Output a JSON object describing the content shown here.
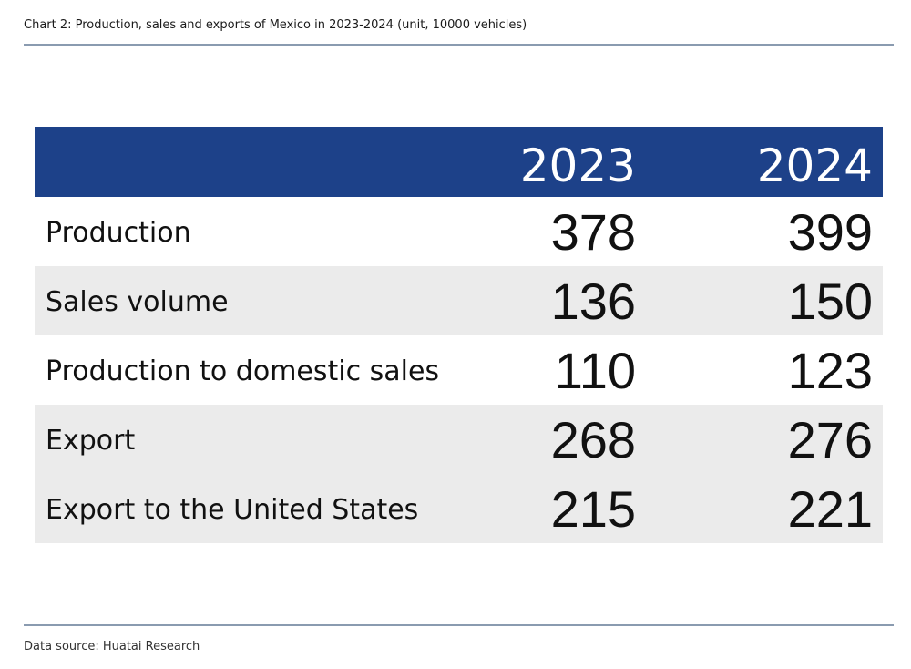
{
  "caption": "Chart 2:   Production, sales and exports of Mexico in 2023-2024 (unit, 10000 vehicles)",
  "source": "Data source:   Huatai Research",
  "colors": {
    "header_bg": "#1d4189",
    "header_text": "#ffffff",
    "row_shade": "#ebebeb",
    "rule": "#8a9bb0"
  },
  "chart_data": {
    "type": "table",
    "title": "Chart 2:   Production, sales and exports of Mexico in 2023-2024 (unit, 10000 vehicles)",
    "columns": [
      "2023",
      "2024"
    ],
    "rows": [
      {
        "label": "Production",
        "values": [
          "378",
          "399"
        ]
      },
      {
        "label": "Sales volume",
        "values": [
          "136",
          "150"
        ]
      },
      {
        "label": "Production to domestic sales",
        "values": [
          "110",
          "123"
        ]
      },
      {
        "label": "Export",
        "values": [
          "268",
          "276"
        ]
      },
      {
        "label": "Export to the United States",
        "values": [
          "215",
          "221"
        ]
      }
    ]
  }
}
